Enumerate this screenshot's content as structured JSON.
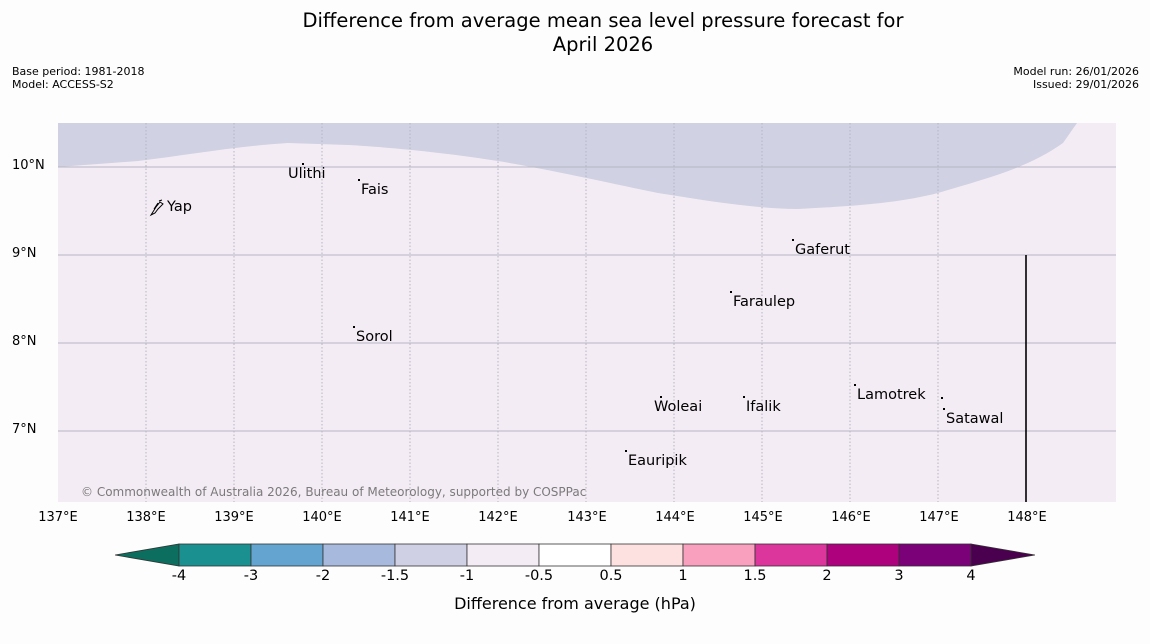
{
  "title": {
    "line1": "Difference from average mean sea level pressure forecast for",
    "line2": "April 2026"
  },
  "meta": {
    "base_period": "Base period: 1981-2018",
    "model": "Model: ACCESS-S2",
    "model_run": "Model run: 26/01/2026",
    "issued": "Issued: 29/01/2026"
  },
  "map": {
    "colors": {
      "background": "#f4ecf4",
      "anomaly_region": "#d0d1e2",
      "gridline": "#b5b5c4"
    },
    "lat_labels": [
      "10°N",
      "9°N",
      "8°N",
      "7°N"
    ],
    "lon_labels": [
      "137°E",
      "138°E",
      "139°E",
      "140°E",
      "141°E",
      "142°E",
      "143°E",
      "144°E",
      "145°E",
      "146°E",
      "147°E",
      "148°E"
    ],
    "places": [
      "Yap",
      "Ulithi",
      "Fais",
      "Gaferut",
      "Faraulep",
      "Sorol",
      "Woleai",
      "Ifalik",
      "Lamotrek",
      "Satawal",
      "Eauripik"
    ],
    "copyright": "© Commonwealth of Australia 2026, Bureau of Meteorology, supported by COSPPac"
  },
  "colorbar": {
    "colors": [
      "#0b6e5e",
      "#1a9090",
      "#63a5d0",
      "#a7b9dc",
      "#cfd0e3",
      "#f4ecf5",
      "#ffffff",
      "#fde0e0",
      "#f8a0be",
      "#dc359c",
      "#ad017e",
      "#7a0177",
      "#4b004f"
    ],
    "ticks": [
      "-4",
      "-3",
      "-2",
      "-1.5",
      "-1",
      "-0.5",
      "0.5",
      "1",
      "1.5",
      "2",
      "3",
      "4"
    ],
    "label": "Difference from average (hPa)"
  }
}
